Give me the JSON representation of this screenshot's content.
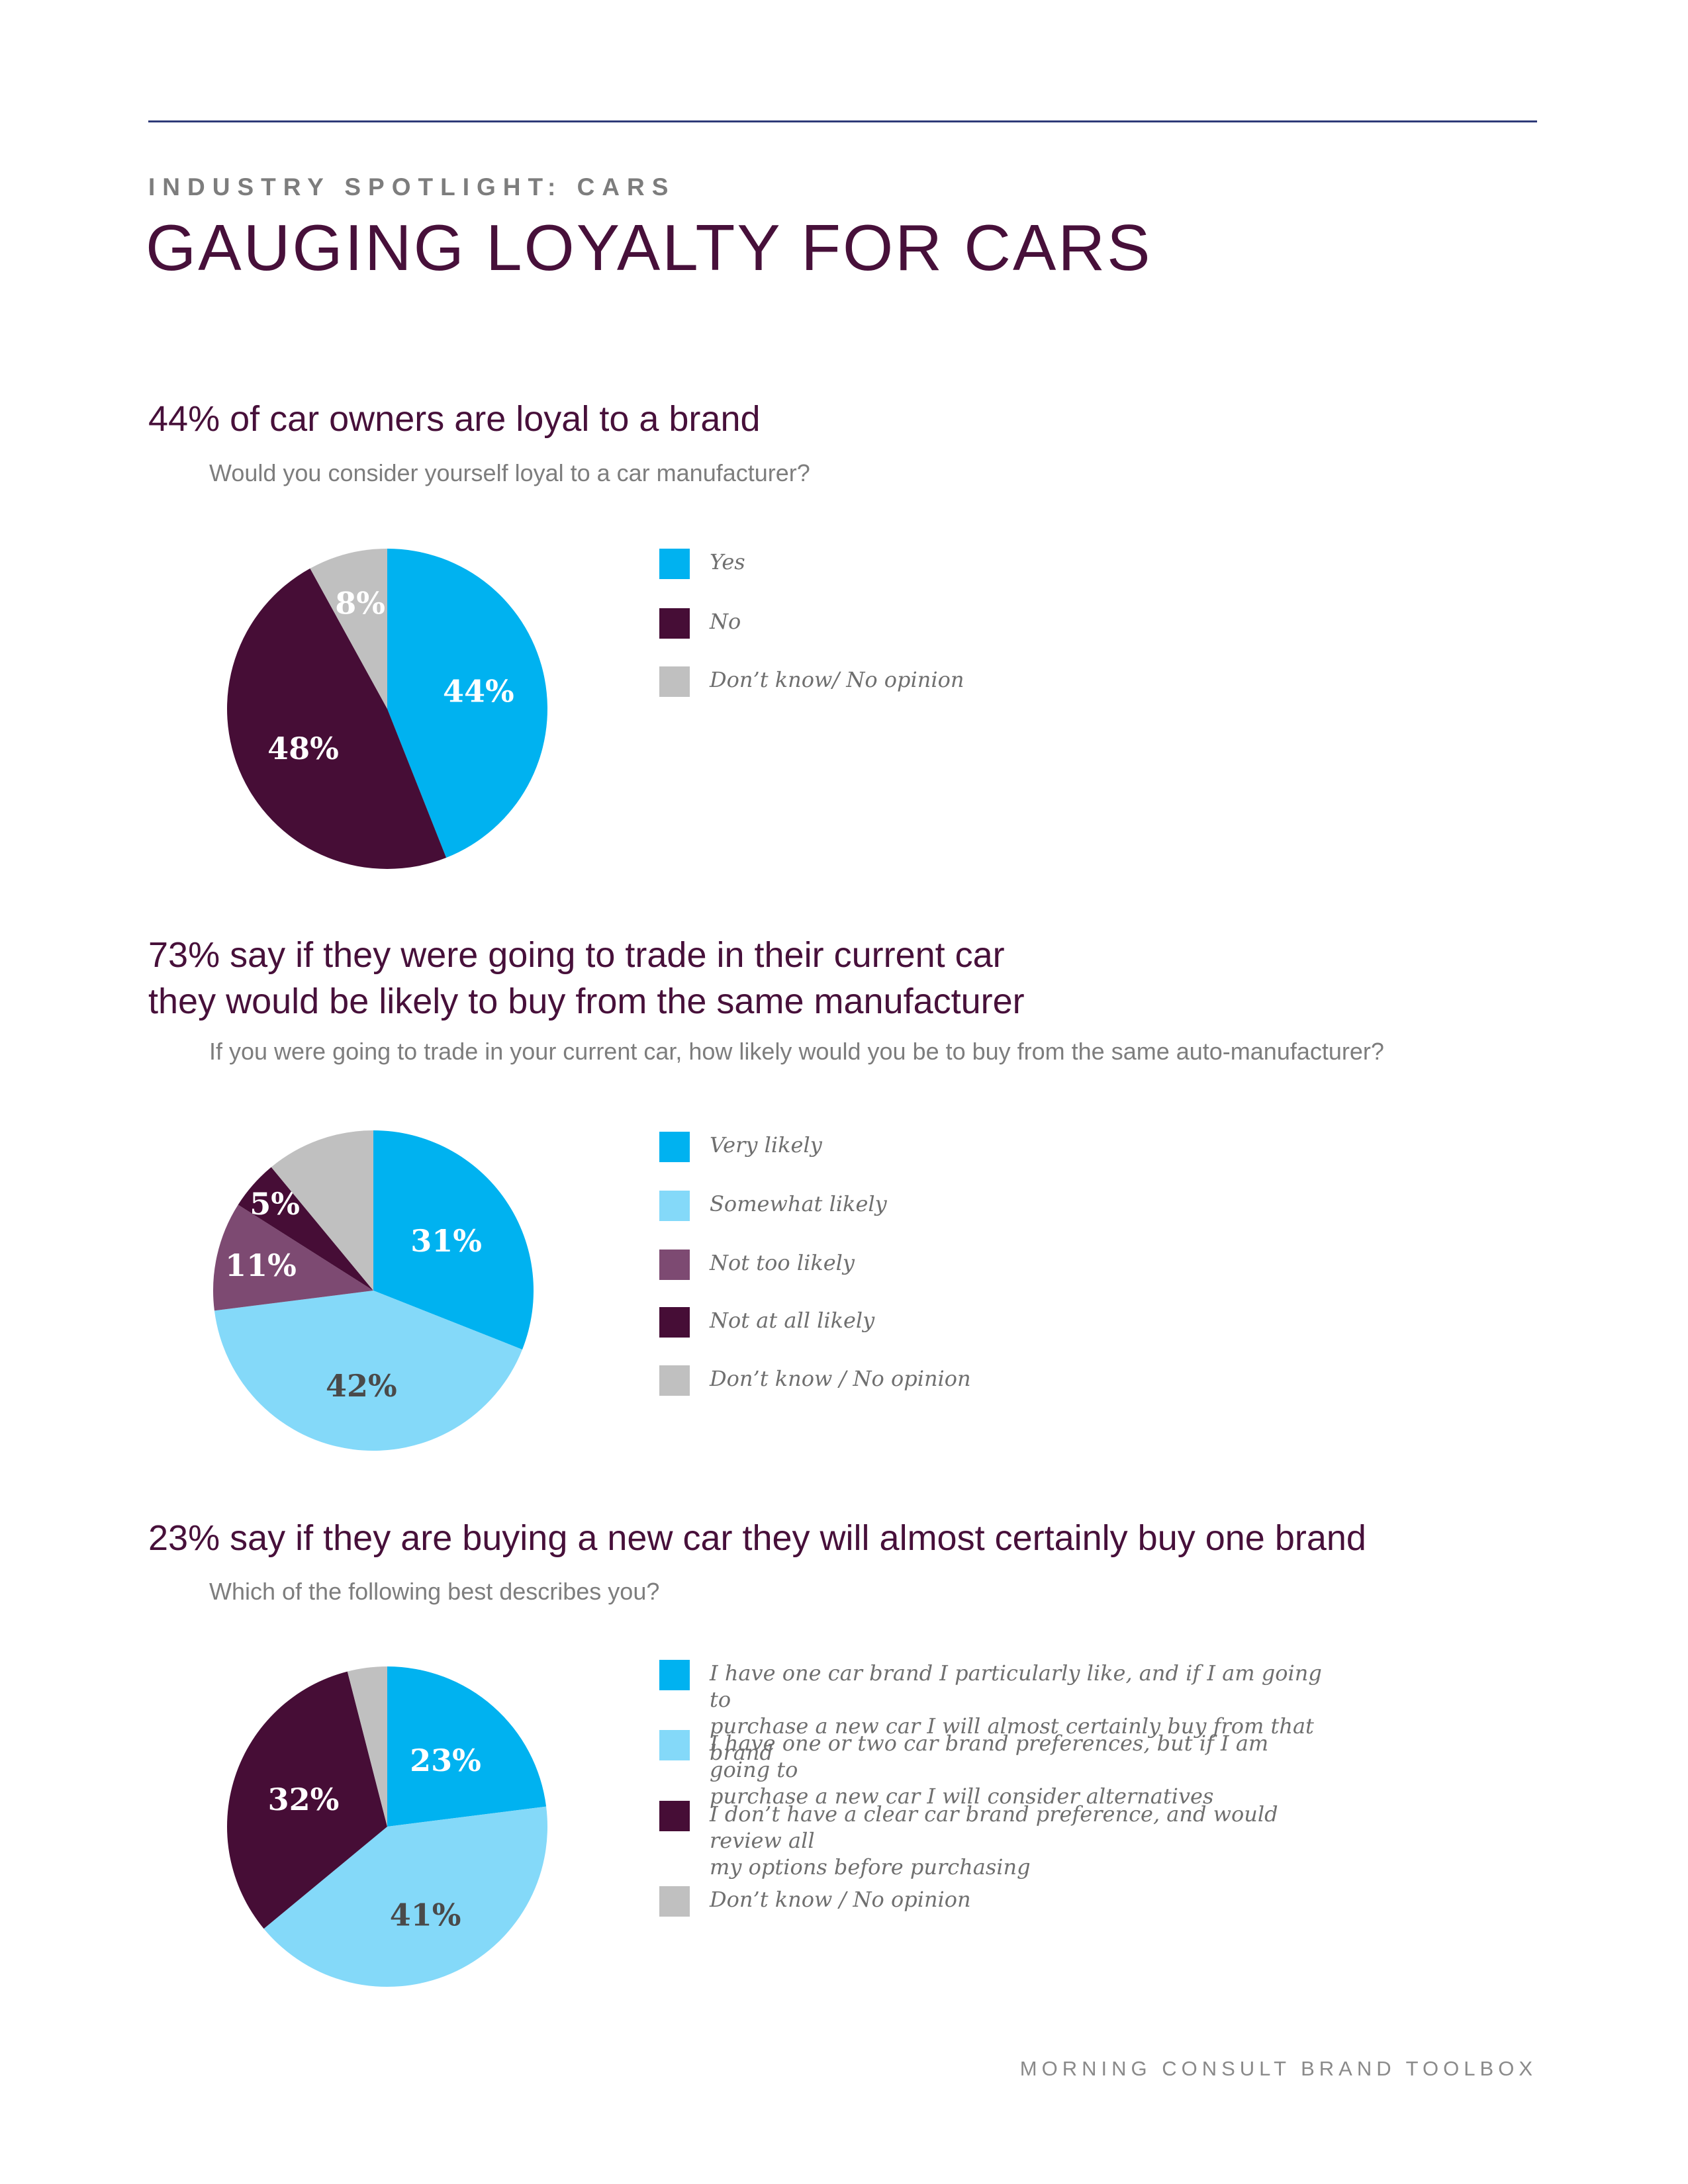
{
  "header": {
    "eyebrow": "INDUSTRY SPOTLIGHT: CARS",
    "title": "GAUGING LOYALTY FOR CARS"
  },
  "footer": {
    "text": "MORNING CONSULT BRAND TOOLBOX"
  },
  "colors": {
    "blue": "#00b2f0",
    "light_blue": "#84d9f9",
    "dark_purple": "#460d36",
    "mid_purple": "#7d4a72",
    "gray": "#c0c0c0",
    "heading": "#47103a"
  },
  "sections": [
    {
      "headline": "44% of car owners are loyal to a brand",
      "question": "Would you consider yourself loyal to a car manufacturer?"
    },
    {
      "headline_line1": "73% say if they were going to trade in their current car",
      "headline_line2": "they would be likely to buy from the same manufacturer",
      "question": "If you were going to trade in your current car, how likely would you be to buy from the same auto-manufacturer?"
    },
    {
      "headline": "23% say if they are buying a new car they will almost certainly buy one brand",
      "question": "Which of the following best describes you?"
    }
  ],
  "chart_data": [
    {
      "type": "pie",
      "title": "Would you consider yourself loyal to a car manufacturer?",
      "slices": [
        {
          "label": "Yes",
          "value": 44,
          "display": "44%",
          "color": "#00b2f0",
          "text_color": "#ffffff"
        },
        {
          "label": "No",
          "value": 48,
          "display": "48%",
          "color": "#460d36",
          "text_color": "#ffffff"
        },
        {
          "label": "Don’t know/ No opinion",
          "value": 8,
          "display": "8%",
          "color": "#c0c0c0",
          "text_color": "#ffffff"
        }
      ]
    },
    {
      "type": "pie",
      "title": "If you were going to trade in your current car, how likely would you be to buy from the same auto-manufacturer?",
      "slices": [
        {
          "label": "Very likely",
          "value": 31,
          "display": "31%",
          "color": "#00b2f0",
          "text_color": "#ffffff"
        },
        {
          "label": "Somewhat likely",
          "value": 42,
          "display": "42%",
          "color": "#84d9f9",
          "text_color": "#4a4a4a"
        },
        {
          "label": "Not too likely",
          "value": 11,
          "display": "11%",
          "color": "#7d4a72",
          "text_color": "#ffffff"
        },
        {
          "label": "Not at all likely",
          "value": 5,
          "display": "5%",
          "color": "#460d36",
          "text_color": "#ffffff"
        },
        {
          "label": "Don’t know / No opinion",
          "value": 11,
          "display": "",
          "color": "#c0c0c0",
          "text_color": "#ffffff"
        }
      ]
    },
    {
      "type": "pie",
      "title": "Which of the following best describes you?",
      "slices": [
        {
          "label": "I have one car brand I particularly like, and if I am going to\npurchase a new car I will almost certainly buy from that brand",
          "value": 23,
          "display": "23%",
          "color": "#00b2f0",
          "text_color": "#ffffff"
        },
        {
          "label": "I have one or two car brand preferences, but if I am going to\npurchase a new car I will consider alternatives",
          "value": 41,
          "display": "41%",
          "color": "#84d9f9",
          "text_color": "#4a4a4a"
        },
        {
          "label": "I don’t have a clear car brand preference, and would review all\nmy options before purchasing",
          "value": 32,
          "display": "32%",
          "color": "#460d36",
          "text_color": "#ffffff"
        },
        {
          "label": "Don’t know / No opinion",
          "value": 4,
          "display": "",
          "color": "#c0c0c0",
          "text_color": "#ffffff"
        }
      ]
    }
  ]
}
